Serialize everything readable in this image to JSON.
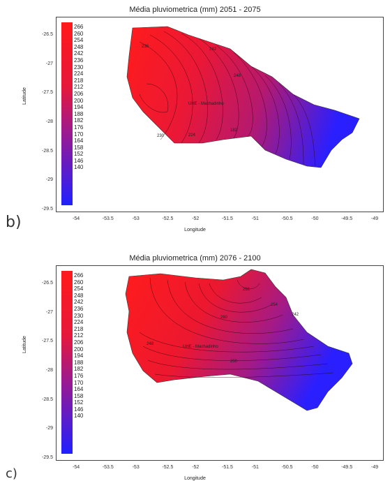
{
  "panels": [
    {
      "id": "a",
      "title": "Média pluviometrica (mm) 2051 - 2075",
      "xlabel": "Longitude",
      "ylabel": "Latitude",
      "sublabel": "",
      "station": "UHE - Machadinho",
      "contour_labels": [
        "236",
        "242",
        "248",
        "230",
        "224",
        "182"
      ],
      "x_ticks": [
        "-54",
        "-53.5",
        "-53",
        "-52.5",
        "-52",
        "-51.5",
        "-51",
        "-50.5",
        "-50",
        "-49.5",
        "-49"
      ],
      "y_ticks": [
        "-26.5",
        "-27",
        "-27.5",
        "-28",
        "-28.5",
        "-29",
        "-29.5"
      ],
      "legend": [
        "266",
        "260",
        "254",
        "248",
        "242",
        "236",
        "230",
        "224",
        "218",
        "212",
        "206",
        "200",
        "194",
        "188",
        "182",
        "176",
        "170",
        "164",
        "158",
        "152",
        "146",
        "140"
      ]
    },
    {
      "id": "b",
      "title": "Média pluviometrica (mm) 2076 - 2100",
      "xlabel": "Longitude",
      "ylabel": "Latitude",
      "sublabel": "b)",
      "station": "UHE - Machadinho",
      "contour_labels": [
        "260",
        "266",
        "254",
        "200",
        "248",
        "242"
      ],
      "x_ticks": [
        "-54",
        "-53.5",
        "-53",
        "-52.5",
        "-52",
        "-51.5",
        "-51",
        "-50.5",
        "-50",
        "-49.5",
        "-49"
      ],
      "y_ticks": [
        "-26.5",
        "-27",
        "-27.5",
        "-28",
        "-28.5",
        "-29",
        "-29.5"
      ],
      "legend": [
        "266",
        "260",
        "254",
        "248",
        "242",
        "236",
        "230",
        "224",
        "218",
        "212",
        "206",
        "200",
        "194",
        "188",
        "182",
        "176",
        "170",
        "164",
        "158",
        "152",
        "146",
        "140"
      ]
    }
  ],
  "bottom_label": "c)",
  "colors": {
    "high": "#ff1a1a",
    "mid": "#9c1a8f",
    "low": "#2020ff"
  }
}
